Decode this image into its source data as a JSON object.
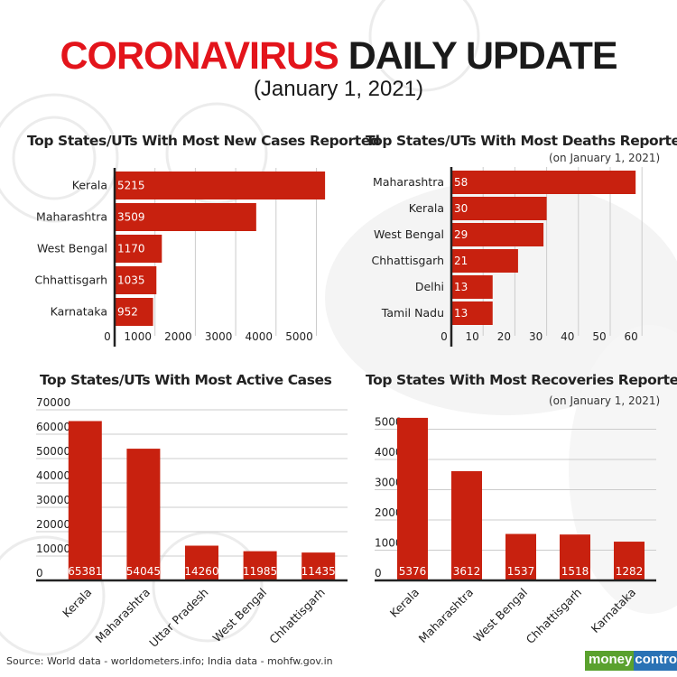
{
  "header": {
    "title_red": "CORONAVIRUS",
    "title_dark": "DAILY UPDATE",
    "subtitle": "(January 1, 2021)"
  },
  "colors": {
    "bar": "#c8210f",
    "title_red": "#e3141b",
    "grid": "#cccccc"
  },
  "chart_data": [
    {
      "type": "bar",
      "orientation": "horizontal",
      "title": "Top States/UTs With Most New Cases Reported",
      "categories": [
        "Kerala",
        "Maharashtra",
        "West Bengal",
        "Chhattisgarh",
        "Karnataka"
      ],
      "values": [
        5215,
        3509,
        1170,
        1035,
        952
      ],
      "xticks": [
        "0",
        "1000",
        "2000",
        "3000",
        "4000",
        "5000"
      ],
      "xlim": [
        0,
        5500
      ],
      "grid": true
    },
    {
      "type": "bar",
      "orientation": "horizontal",
      "title": "Top States/UTs With Most Deaths Reported",
      "note": "(on January 1, 2021)",
      "categories": [
        "Maharashtra",
        "Kerala",
        "West Bengal",
        "Chhattisgarh",
        "Delhi",
        "Tamil Nadu"
      ],
      "values": [
        58,
        30,
        29,
        21,
        13,
        13
      ],
      "xticks": [
        "0",
        "10",
        "20",
        "30",
        "40",
        "50",
        "60"
      ],
      "xlim": [
        0,
        60
      ],
      "grid": true
    },
    {
      "type": "bar",
      "orientation": "vertical",
      "title": "Top States/UTs With Most Active Cases",
      "categories": [
        "Kerala",
        "Maharashtra",
        "Uttar Pradesh",
        "West Bengal",
        "Chhattisgarh"
      ],
      "values": [
        65381,
        54045,
        14260,
        11985,
        11435
      ],
      "yticks": [
        "0",
        "10000",
        "20000",
        "30000",
        "40000",
        "50000",
        "60000",
        "70000"
      ],
      "ylim": [
        0,
        70000
      ],
      "grid": true
    },
    {
      "type": "bar",
      "orientation": "vertical",
      "title": "Top States With Most Recoveries Reported",
      "note": "(on January 1, 2021)",
      "categories": [
        "Kerala",
        "Maharashtra",
        "West Bengal",
        "Chhattisgarh",
        "Karnataka"
      ],
      "values": [
        5376,
        3612,
        1537,
        1518,
        1282
      ],
      "yticks": [
        "0",
        "1000",
        "2000",
        "3000",
        "4000",
        "5000"
      ],
      "ylim": [
        0,
        5000
      ],
      "grid": true
    }
  ],
  "footer": {
    "source": "Source: World data - worldometers.info; India data - mohfw.gov.in",
    "logo_a": "money",
    "logo_b": "control"
  }
}
